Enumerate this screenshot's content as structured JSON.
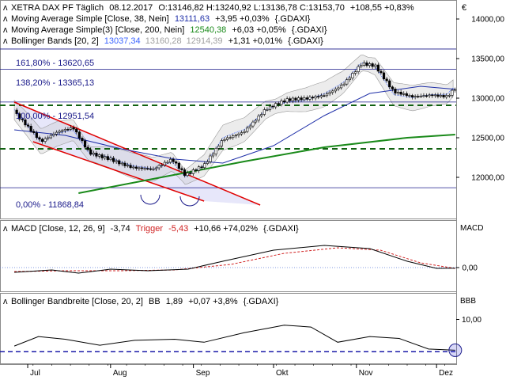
{
  "header": {
    "instrument": "XETRA DAX PF Täglich",
    "date": "08.12.2017",
    "ohlc": "O:13146,82 H:13240,92 L:13136,78 C:13153,70",
    "change": "+108,55 +0,83%",
    "currency_symbol": "€"
  },
  "indicators": {
    "ma38": {
      "label": "Moving Average Simple [Close, 38, Nein]",
      "value": "13111,63",
      "change": "+3,95 +0,03%",
      "symbol": "{.GDAXI}"
    },
    "ma200": {
      "label": "Moving Average Simple(3) [Close, 200, Nein]",
      "value": "12540,38",
      "change": "+6,03 +0,05%",
      "symbol": "{.GDAXI}"
    },
    "bb": {
      "label": "Bollinger Bands [20, 2]",
      "mid": "13037,34",
      "upper": "13160,28",
      "lower": "12914,39",
      "change": "+1,31 +0,01%",
      "symbol": "{.GDAXI}"
    }
  },
  "fib_labels": [
    "161,80% - 13620,65",
    "138,20% - 13365,13",
    "100,00% - 12951,54",
    "0,00% - 11868,84"
  ],
  "macd_panel": {
    "label": "MACD [Close, 12, 26, 9]",
    "value": "-3,74",
    "trigger_label": "Trigger",
    "trigger": "-5,43",
    "change": "+10,66 +74,02%",
    "symbol": "{.GDAXI}",
    "axis_title": "MACD",
    "tick": "0,00"
  },
  "bbw_panel": {
    "label": "Bollinger Bandbreite [Close, 20, 2]",
    "bb_label": "BB",
    "value": "1,89",
    "change": "+0,07 +3,8%",
    "symbol": "{.GDAXI}",
    "axis_title": "BBB",
    "tick": "10,00"
  },
  "price_axis_ticks": [
    "14000,00",
    "13500,00",
    "13000,00",
    "12500,00",
    "12000,00"
  ],
  "x_axis_ticks": [
    "Jul",
    "Aug",
    "Sep",
    "Okt",
    "Nov",
    "Dez"
  ],
  "colors": {
    "candle_up": "#ffffff",
    "candle_down": "#000000",
    "ma38": "#1f2fa8",
    "ma200": "#1a8a1a",
    "bollinger": "#3b64ff",
    "fib_line": "#1a1a8a",
    "support_dash": "#126112",
    "channel": "#e00000",
    "trigger": "#d02020"
  },
  "chart_data": {
    "type": "line",
    "price": {
      "close_path": [
        {
          "x": "2017-06-26",
          "y": 12850
        },
        {
          "x": "2017-06-30",
          "y": 12700
        },
        {
          "x": "2017-07-06",
          "y": 12450
        },
        {
          "x": "2017-07-12",
          "y": 12550
        },
        {
          "x": "2017-07-18",
          "y": 12600
        },
        {
          "x": "2017-07-24",
          "y": 12300
        },
        {
          "x": "2017-08-01",
          "y": 12250
        },
        {
          "x": "2017-08-09",
          "y": 12150
        },
        {
          "x": "2017-08-17",
          "y": 12100
        },
        {
          "x": "2017-08-24",
          "y": 12200
        },
        {
          "x": "2017-08-29",
          "y": 12000
        },
        {
          "x": "2017-09-05",
          "y": 12150
        },
        {
          "x": "2017-09-12",
          "y": 12500
        },
        {
          "x": "2017-09-20",
          "y": 12600
        },
        {
          "x": "2017-09-28",
          "y": 12850
        },
        {
          "x": "2017-10-06",
          "y": 12950
        },
        {
          "x": "2017-10-13",
          "y": 12980
        },
        {
          "x": "2017-10-20",
          "y": 13050
        },
        {
          "x": "2017-10-27",
          "y": 13200
        },
        {
          "x": "2017-11-03",
          "y": 13450
        },
        {
          "x": "2017-11-08",
          "y": 13400
        },
        {
          "x": "2017-11-15",
          "y": 13050
        },
        {
          "x": "2017-11-22",
          "y": 13000
        },
        {
          "x": "2017-11-29",
          "y": 13050
        },
        {
          "x": "2017-12-05",
          "y": 13050
        },
        {
          "x": "2017-12-08",
          "y": 13153.7
        }
      ],
      "ma38_path": [
        {
          "x": "2017-06-26",
          "y": 12600
        },
        {
          "x": "2017-07-15",
          "y": 12530
        },
        {
          "x": "2017-08-05",
          "y": 12360
        },
        {
          "x": "2017-08-25",
          "y": 12230
        },
        {
          "x": "2017-09-12",
          "y": 12180
        },
        {
          "x": "2017-10-01",
          "y": 12400
        },
        {
          "x": "2017-10-20",
          "y": 12780
        },
        {
          "x": "2017-11-06",
          "y": 13060
        },
        {
          "x": "2017-11-25",
          "y": 13150
        },
        {
          "x": "2017-12-08",
          "y": 13111.63
        }
      ],
      "ma200_path": [
        {
          "x": "2017-07-20",
          "y": 11800
        },
        {
          "x": "2017-08-20",
          "y": 12000
        },
        {
          "x": "2017-09-20",
          "y": 12200
        },
        {
          "x": "2017-10-20",
          "y": 12380
        },
        {
          "x": "2017-11-20",
          "y": 12500
        },
        {
          "x": "2017-12-08",
          "y": 12540.38
        }
      ],
      "fib_levels": [
        13620.65,
        13365.13,
        12951.54,
        11868.84
      ],
      "support_levels": [
        12910,
        12360
      ],
      "channel_upper": [
        {
          "x": "2017-06-26",
          "y": 12950
        },
        {
          "x": "2017-09-26",
          "y": 11650
        }
      ],
      "channel_lower": [
        {
          "x": "2017-07-03",
          "y": 12450
        },
        {
          "x": "2017-09-05",
          "y": 11700
        }
      ],
      "ylim": [
        11750,
        14400
      ]
    },
    "macd": {
      "path": [
        {
          "x": "2017-06-26",
          "y": -30
        },
        {
          "x": "2017-07-10",
          "y": -15
        },
        {
          "x": "2017-07-20",
          "y": -35
        },
        {
          "x": "2017-08-01",
          "y": -10
        },
        {
          "x": "2017-08-15",
          "y": -20
        },
        {
          "x": "2017-08-30",
          "y": -10
        },
        {
          "x": "2017-09-12",
          "y": 40
        },
        {
          "x": "2017-10-01",
          "y": 110
        },
        {
          "x": "2017-10-20",
          "y": 140
        },
        {
          "x": "2017-11-06",
          "y": 120
        },
        {
          "x": "2017-11-20",
          "y": 40
        },
        {
          "x": "2017-12-01",
          "y": -5
        },
        {
          "x": "2017-12-08",
          "y": -3.74
        }
      ],
      "trigger_path": [
        {
          "x": "2017-06-26",
          "y": -25
        },
        {
          "x": "2017-07-15",
          "y": -20
        },
        {
          "x": "2017-08-05",
          "y": -20
        },
        {
          "x": "2017-08-25",
          "y": -15
        },
        {
          "x": "2017-09-15",
          "y": 20
        },
        {
          "x": "2017-10-05",
          "y": 90
        },
        {
          "x": "2017-10-25",
          "y": 125
        },
        {
          "x": "2017-11-10",
          "y": 110
        },
        {
          "x": "2017-11-25",
          "y": 30
        },
        {
          "x": "2017-12-08",
          "y": -5.43
        }
      ],
      "ylim": [
        -60,
        200
      ]
    },
    "bandwidth": {
      "path": [
        {
          "x": "2017-06-26",
          "y": 3.0
        },
        {
          "x": "2017-07-05",
          "y": 5.5
        },
        {
          "x": "2017-07-15",
          "y": 4.8
        },
        {
          "x": "2017-07-28",
          "y": 3.2
        },
        {
          "x": "2017-08-10",
          "y": 4.5
        },
        {
          "x": "2017-08-25",
          "y": 4.8
        },
        {
          "x": "2017-09-05",
          "y": 4.0
        },
        {
          "x": "2017-09-20",
          "y": 6.5
        },
        {
          "x": "2017-10-05",
          "y": 8.5
        },
        {
          "x": "2017-10-15",
          "y": 8.0
        },
        {
          "x": "2017-10-25",
          "y": 4.0
        },
        {
          "x": "2017-11-06",
          "y": 5.5
        },
        {
          "x": "2017-11-17",
          "y": 5.0
        },
        {
          "x": "2017-11-28",
          "y": 2.2
        },
        {
          "x": "2017-12-08",
          "y": 1.89
        }
      ],
      "dashed_level": 1.5,
      "ylim": [
        0,
        14
      ]
    }
  }
}
